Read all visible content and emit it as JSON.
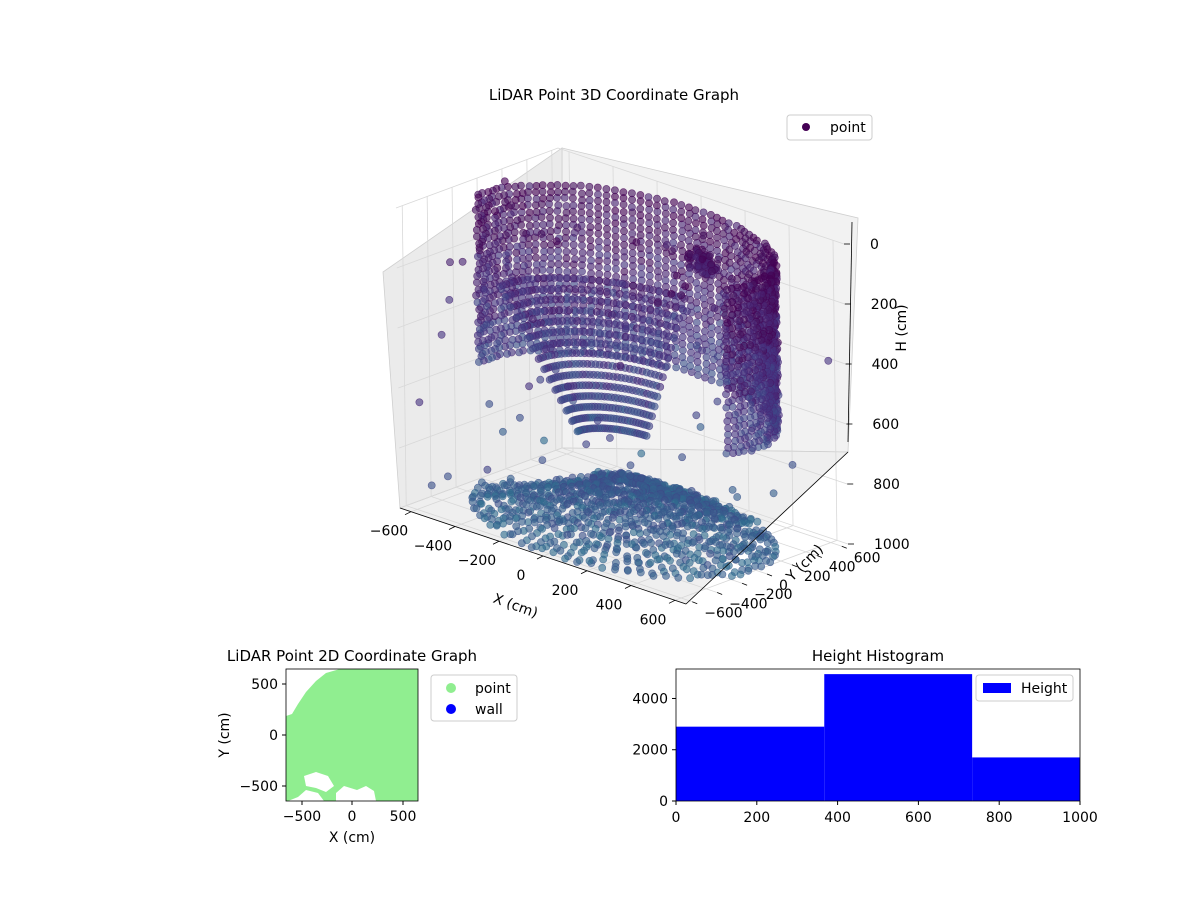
{
  "colors": {
    "background": "#ffffff",
    "pane": "#f2f2f2",
    "pane_side": "#ebebeb",
    "grid": "#d8d8d8",
    "point_dark": "#440154",
    "point_mid": "#3b528b",
    "point_light": "#6a9fc0",
    "point_2d": "#90ee90",
    "wall": "#0000ff",
    "histogram": "#0000ff"
  },
  "chart_data": [
    {
      "type": "scatter3d",
      "title": "LiDAR Point 3D Coordinate Graph",
      "xlabel": "X (cm)",
      "ylabel": "Y (cm)",
      "zlabel": "H (cm)",
      "xlim": [
        -650,
        650
      ],
      "ylim": [
        -650,
        650
      ],
      "zlim": [
        1000,
        0
      ],
      "xticks": [
        "−600",
        "−400",
        "−200",
        "0",
        "200",
        "400",
        "600"
      ],
      "yticks": [
        "−600",
        "−400",
        "−200",
        "0",
        "200",
        "400",
        "600"
      ],
      "zticks": [
        "0",
        "200",
        "400",
        "600",
        "800",
        "1000"
      ],
      "legend": {
        "position": "top-right",
        "entries": [
          "point"
        ]
      },
      "colormap": "viridis",
      "grid": true
    },
    {
      "type": "scatter",
      "title": "LiDAR Point 2D Coordinate Graph",
      "xlabel": "X (cm)",
      "ylabel": "Y (cm)",
      "xlim": [
        -650,
        650
      ],
      "ylim": [
        -650,
        650
      ],
      "xticks": [
        "−500",
        "0",
        "500"
      ],
      "yticks": [
        "500",
        "0",
        "−500"
      ],
      "legend": {
        "position": "outside-right",
        "entries": [
          "point",
          "wall"
        ]
      },
      "series": [
        {
          "name": "point",
          "color": "#90ee90"
        },
        {
          "name": "wall",
          "color": "#0000ff"
        }
      ]
    },
    {
      "type": "bar",
      "title": "Height Histogram",
      "bins": [
        [
          0,
          367
        ],
        [
          367,
          733
        ],
        [
          733,
          1000
        ]
      ],
      "values": [
        2900,
        4950,
        1700
      ],
      "xlim": [
        0,
        1000
      ],
      "ylim": [
        0,
        5150
      ],
      "xticks": [
        "0",
        "200",
        "400",
        "600",
        "800",
        "1000"
      ],
      "yticks": [
        "0",
        "2000",
        "4000"
      ],
      "legend": {
        "position": "top-right",
        "entries": [
          "Height"
        ]
      },
      "series": [
        {
          "name": "Height",
          "color": "#0000ff"
        }
      ]
    }
  ]
}
